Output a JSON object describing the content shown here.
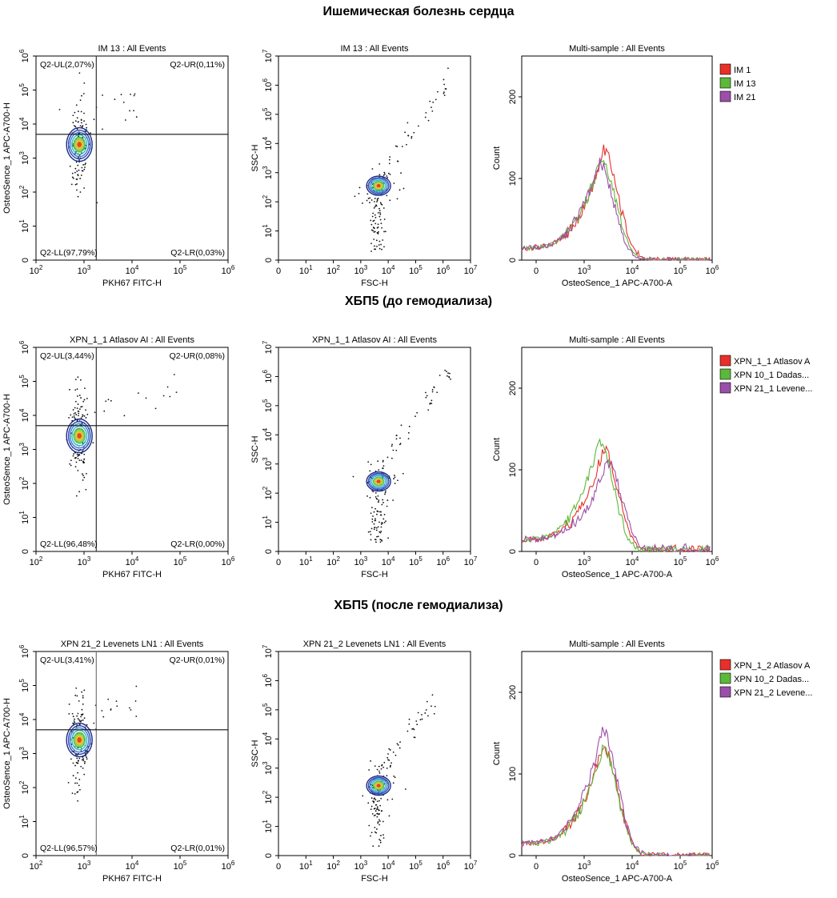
{
  "sections": [
    {
      "title": "Ишемическая болезнь сердца",
      "dot_plot": {
        "title": "IM 13 : All Events",
        "xlabel": "PKH67 FITC-H",
        "ylabel": "OsteoSence_1 APC-A700-H",
        "x_range_log10": [
          2,
          6
        ],
        "y_range_log10": [
          0,
          6
        ],
        "gate_x": 1800,
        "gate_y": 5000,
        "quadrants": {
          "ul": "Q2-UL(2,07%)",
          "ur": "Q2-UR(0,11%)",
          "ll": "Q2-LL(97,79%)",
          "lr": "Q2-LR(0,03%)"
        }
      },
      "scatter_plot": {
        "title": "IM 13 : All Events",
        "xlabel": "FSC-H",
        "ylabel": "SSC-H",
        "x_range_log10": [
          0,
          7
        ],
        "y_range_log10": [
          0,
          7
        ]
      },
      "histogram": {
        "title": "Multi-sample : All Events",
        "xlabel": "OsteoSence_1 APC-A700-A",
        "ylabel": "Count",
        "y_range": [
          0,
          250
        ],
        "legend": [
          {
            "name": "IM 1",
            "color": "#e8302a"
          },
          {
            "name": "IM 13",
            "color": "#5cb83a"
          },
          {
            "name": "IM 21",
            "color": "#9b4fa8"
          }
        ]
      }
    },
    {
      "title": "ХБП5 (до гемодиализа)",
      "dot_plot": {
        "title": "XPN_1_1 Atlasov AI : All Events",
        "xlabel": "PKH67 FITC-H",
        "ylabel": "OsteoSence_1 APC-A700-H",
        "x_range_log10": [
          2,
          6
        ],
        "y_range_log10": [
          0,
          6
        ],
        "gate_x": 1800,
        "gate_y": 5000,
        "quadrants": {
          "ul": "Q2-UL(3,44%)",
          "ur": "Q2-UR(0,08%)",
          "ll": "Q2-LL(96,48%)",
          "lr": "Q2-LR(0,00%)"
        }
      },
      "scatter_plot": {
        "title": "XPN_1_1 Atlasov AI : All Events",
        "xlabel": "FSC-H",
        "ylabel": "SSC-H",
        "x_range_log10": [
          0,
          7
        ],
        "y_range_log10": [
          0,
          7
        ]
      },
      "histogram": {
        "title": "Multi-sample : All Events",
        "xlabel": "OsteoSence_1 APC-A700-A",
        "ylabel": "Count",
        "y_range": [
          0,
          250
        ],
        "legend": [
          {
            "name": "XPN_1_1 Atlasov A",
            "color": "#e8302a"
          },
          {
            "name": "XPN 10_1 Dadas...",
            "color": "#5cb83a"
          },
          {
            "name": "XPN 21_1 Levene...",
            "color": "#9b4fa8"
          }
        ]
      }
    },
    {
      "title": "ХБП5 (после гемодиализа)",
      "dot_plot": {
        "title": "XPN 21_2 Levenets LN1 : All Events",
        "xlabel": "PKH67 FITC-H",
        "ylabel": "OsteoSence_1 APC-A700-H",
        "x_range_log10": [
          2,
          6
        ],
        "y_range_log10": [
          0,
          6
        ],
        "gate_x": 1800,
        "gate_y": 5000,
        "quadrants": {
          "ul": "Q2-UL(3,41%)",
          "ur": "Q2-UR(0,01%)",
          "ll": "Q2-LL(96,57%)",
          "lr": "Q2-LR(0,01%)"
        }
      },
      "scatter_plot": {
        "title": "XPN 21_2 Levenets LN1 : All Events",
        "xlabel": "FSC-H",
        "ylabel": "SSC-H",
        "x_range_log10": [
          0,
          7
        ],
        "y_range_log10": [
          0,
          7
        ]
      },
      "histogram": {
        "title": "Multi-sample : All Events",
        "xlabel": "OsteoSence_1 APC-A700-A",
        "ylabel": "Count",
        "y_range": [
          0,
          250
        ],
        "legend": [
          {
            "name": "XPN_1_2 Atlasov A",
            "color": "#e8302a"
          },
          {
            "name": "XPN 10_2 Dadas...",
            "color": "#5cb83a"
          },
          {
            "name": "XPN 21_2 Levene...",
            "color": "#9b4fa8"
          }
        ]
      }
    }
  ],
  "chart_data": [
    {
      "type": "scatter",
      "title": "IM 13 : All Events",
      "xlabel": "PKH67 FITC-H",
      "ylabel": "OsteoSence_1 APC-A700-H",
      "x_scale": "log",
      "y_scale": "log",
      "xlim": [
        100,
        1000000
      ],
      "ylim": [
        1,
        1000000
      ],
      "population_center": [
        800,
        2500
      ],
      "quadrant_percent": {
        "UL": 2.07,
        "UR": 0.11,
        "LL": 97.79,
        "LR": 0.03
      }
    },
    {
      "type": "scatter",
      "title": "IM 13 : All Events",
      "xlabel": "FSC-H",
      "ylabel": "SSC-H",
      "x_scale": "log",
      "y_scale": "log",
      "xlim": [
        1,
        10000000
      ],
      "ylim": [
        1,
        10000000
      ],
      "population_center": [
        4500,
        350
      ]
    },
    {
      "type": "line",
      "title": "Multi-sample : All Events",
      "xlabel": "OsteoSence_1 APC-A700-A",
      "ylabel": "Count",
      "ylim": [
        0,
        250
      ],
      "series": [
        {
          "name": "IM 1",
          "peak_x": 2500,
          "peak_count": 135
        },
        {
          "name": "IM 13",
          "peak_x": 2200,
          "peak_count": 125
        },
        {
          "name": "IM 21",
          "peak_x": 2000,
          "peak_count": 120
        }
      ]
    },
    {
      "type": "scatter",
      "title": "XPN_1_1 Atlasov AI : All Events",
      "xlabel": "PKH67 FITC-H",
      "ylabel": "OsteoSence_1 APC-A700-H",
      "x_scale": "log",
      "y_scale": "log",
      "xlim": [
        100,
        1000000
      ],
      "ylim": [
        1,
        1000000
      ],
      "population_center": [
        800,
        2500
      ],
      "quadrant_percent": {
        "UL": 3.44,
        "UR": 0.08,
        "LL": 96.48,
        "LR": 0.0
      }
    },
    {
      "type": "scatter",
      "title": "XPN_1_1 Atlasov AI : All Events",
      "xlabel": "FSC-H",
      "ylabel": "SSC-H",
      "x_scale": "log",
      "y_scale": "log",
      "xlim": [
        1,
        10000000
      ],
      "ylim": [
        1,
        10000000
      ],
      "population_center": [
        4500,
        250
      ]
    },
    {
      "type": "line",
      "title": "Multi-sample : All Events",
      "xlabel": "OsteoSence_1 APC-A700-A",
      "ylabel": "Count",
      "ylim": [
        0,
        250
      ],
      "series": [
        {
          "name": "XPN_1_1 Atlasov A",
          "peak_x": 2500,
          "peak_count": 125
        },
        {
          "name": "XPN 10_1 Dadas...",
          "peak_x": 2000,
          "peak_count": 135
        },
        {
          "name": "XPN 21_1 Levene...",
          "peak_x": 3000,
          "peak_count": 110
        }
      ]
    },
    {
      "type": "scatter",
      "title": "XPN 21_2 Levenets LN1 : All Events",
      "xlabel": "PKH67 FITC-H",
      "ylabel": "OsteoSence_1 APC-A700-H",
      "x_scale": "log",
      "y_scale": "log",
      "xlim": [
        100,
        1000000
      ],
      "ylim": [
        1,
        1000000
      ],
      "population_center": [
        800,
        2500
      ],
      "quadrant_percent": {
        "UL": 3.41,
        "UR": 0.01,
        "LL": 96.57,
        "LR": 0.01
      }
    },
    {
      "type": "scatter",
      "title": "XPN 21_2 Levenets LN1 : All Events",
      "xlabel": "FSC-H",
      "ylabel": "SSC-H",
      "x_scale": "log",
      "y_scale": "log",
      "xlim": [
        1,
        10000000
      ],
      "ylim": [
        1,
        10000000
      ],
      "population_center": [
        4500,
        250
      ]
    },
    {
      "type": "line",
      "title": "Multi-sample : All Events",
      "xlabel": "OsteoSence_1 APC-A700-A",
      "ylabel": "Count",
      "ylim": [
        0,
        250
      ],
      "series": [
        {
          "name": "XPN_1_2 Atlasov A",
          "peak_x": 2400,
          "peak_count": 135
        },
        {
          "name": "XPN 10_2 Dadas...",
          "peak_x": 2400,
          "peak_count": 130
        },
        {
          "name": "XPN 21_2 Levene...",
          "peak_x": 2400,
          "peak_count": 155
        }
      ]
    }
  ]
}
